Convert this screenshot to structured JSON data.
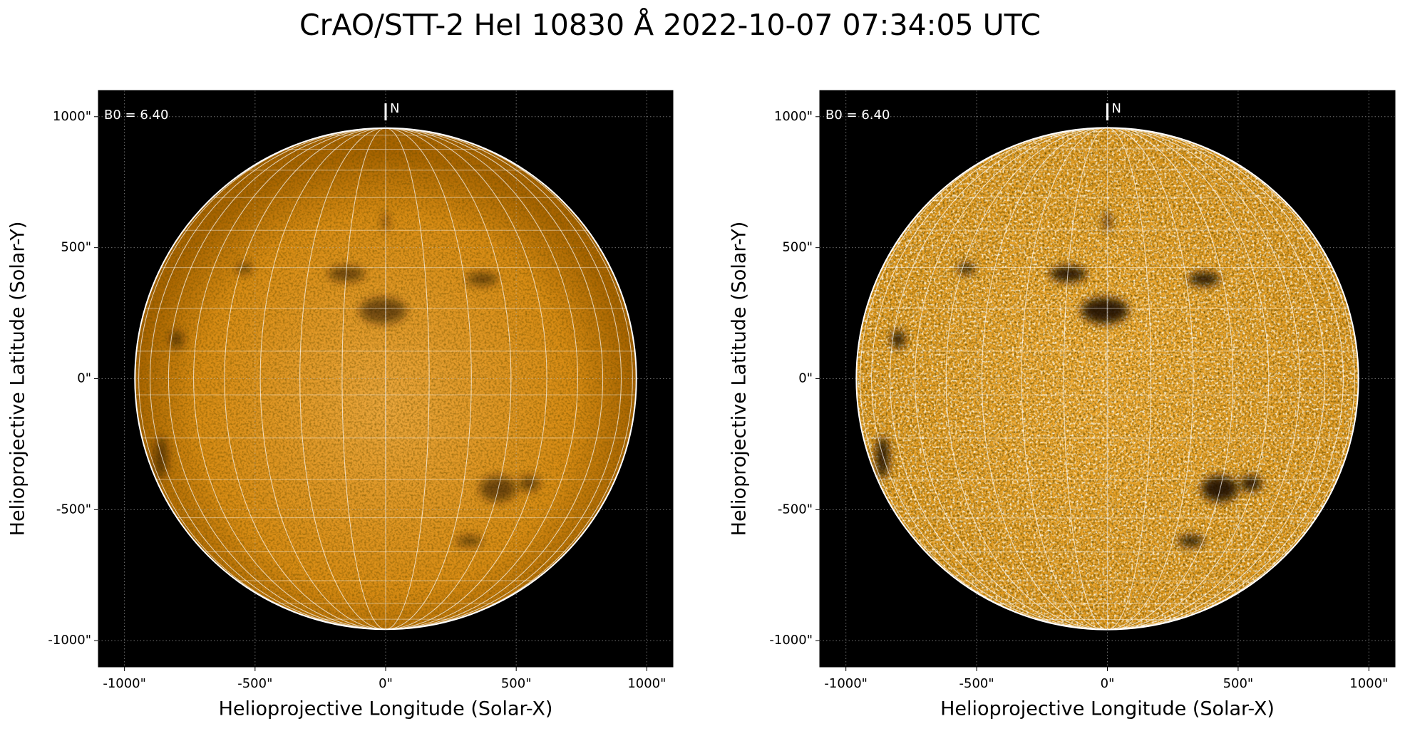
{
  "title": "CrAO/STT-2 HeI 10830 Å 2022-10-07 07:34:05 UTC",
  "chart_data": [
    {
      "type": "image",
      "xlabel": "Helioprojective Longitude (Solar-X)",
      "ylabel": "Helioprojective Latitude (Solar-Y)",
      "annotation": "B0 = 6.40",
      "north_label": "N",
      "xlim": [
        -1100,
        1100
      ],
      "ylim": [
        -1100,
        1100
      ],
      "xticks": [
        {
          "value": -1000,
          "label": "-1000\""
        },
        {
          "value": -500,
          "label": "-500\""
        },
        {
          "value": 0,
          "label": "0\""
        },
        {
          "value": 500,
          "label": "500\""
        },
        {
          "value": 1000,
          "label": "1000\""
        }
      ],
      "yticks": [
        {
          "value": -1000,
          "label": "-1000\""
        },
        {
          "value": -500,
          "label": "-500\""
        },
        {
          "value": 0,
          "label": "0\""
        },
        {
          "value": 500,
          "label": "500\""
        },
        {
          "value": 1000,
          "label": "1000\""
        }
      ],
      "grid": true
    },
    {
      "type": "image",
      "xlabel": "Helioprojective Longitude (Solar-X)",
      "ylabel": "Helioprojective Latitude (Solar-Y)",
      "annotation": "B0 = 6.40",
      "north_label": "N",
      "xlim": [
        -1100,
        1100
      ],
      "ylim": [
        -1100,
        1100
      ],
      "xticks": [
        {
          "value": -1000,
          "label": "-1000\""
        },
        {
          "value": -500,
          "label": "-500\""
        },
        {
          "value": 0,
          "label": "0\""
        },
        {
          "value": 500,
          "label": "500\""
        },
        {
          "value": 1000,
          "label": "1000\""
        }
      ],
      "yticks": [
        {
          "value": -1000,
          "label": "-1000\""
        },
        {
          "value": -500,
          "label": "-500\""
        },
        {
          "value": 0,
          "label": "0\""
        },
        {
          "value": 500,
          "label": "500\""
        },
        {
          "value": 1000,
          "label": "1000\""
        }
      ],
      "grid": true
    }
  ]
}
